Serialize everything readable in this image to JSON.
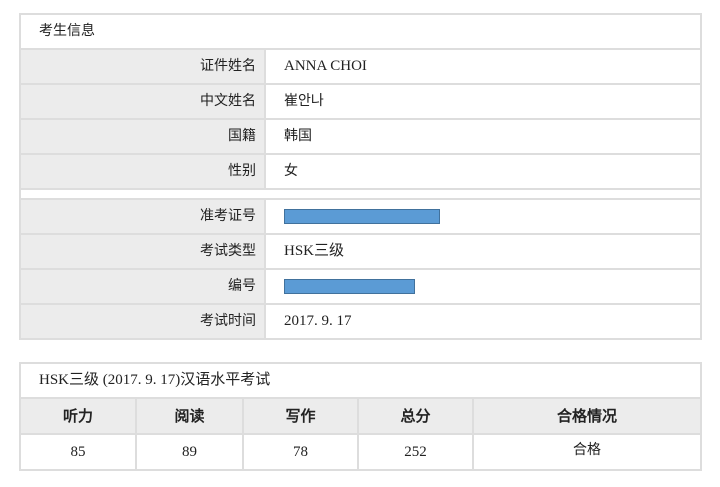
{
  "candidate": {
    "title": "考生信息",
    "rows": [
      {
        "label": "证件姓名",
        "value": "ANNA CHOI"
      },
      {
        "label": "中文姓名",
        "value": "崔안나"
      },
      {
        "label": "国籍",
        "value": "韩国"
      },
      {
        "label": "性别",
        "value": "女"
      }
    ],
    "exam_rows": [
      {
        "label": "准考证号",
        "value": null,
        "redacted": true
      },
      {
        "label": "考试类型",
        "value": "HSK三级"
      },
      {
        "label": "编号",
        "value": null,
        "redacted": true
      },
      {
        "label": "考试时间",
        "value": "2017. 9. 17"
      }
    ],
    "redaction_color": "#5b9bd5"
  },
  "results": {
    "title": "HSK三级 (2017. 9. 17)汉语水平考试",
    "headers": [
      "听力",
      "阅读",
      "写作",
      "总分",
      "合格情况"
    ],
    "values": [
      "85",
      "89",
      "78",
      "252",
      "合格"
    ]
  }
}
